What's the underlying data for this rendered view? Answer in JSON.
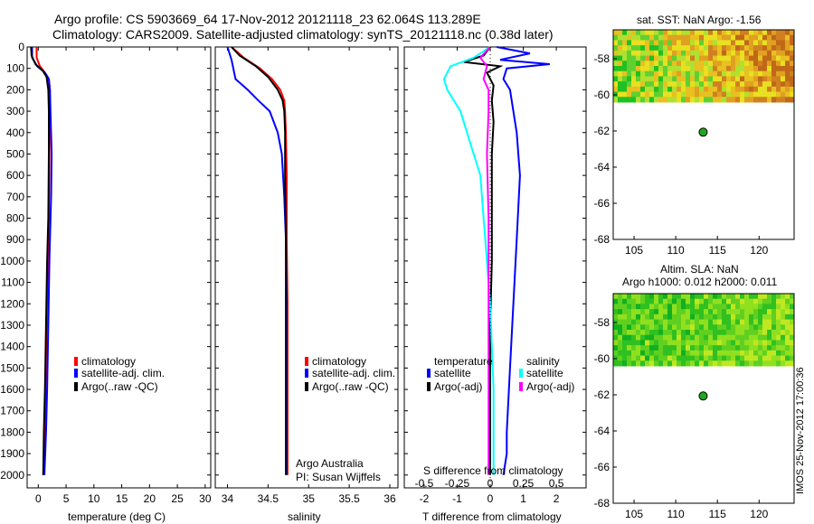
{
  "header": {
    "title_line1": "Argo profile: CS 5903669_64 17-Nov-2012 20121118_23 62.064S 113.289E",
    "title_line2": "Climatology: CARS2009. Satellite-adjusted climatology: synTS_20121118.nc (0.38d later)"
  },
  "colors": {
    "climatology": "#ff0000",
    "satellite": "#0000ff",
    "argo": "#000000",
    "satellite_s": "#00ffff",
    "argo_s": "#ff00ff"
  },
  "chart_data": [
    {
      "type": "line",
      "panel": "temperature",
      "xlabel": "temperature (deg C)",
      "xticks": [
        0,
        5,
        10,
        15,
        20,
        25,
        30
      ],
      "xlim": [
        -2,
        31
      ],
      "ylim": [
        0,
        2060
      ],
      "yticks": [
        0,
        100,
        200,
        300,
        400,
        500,
        600,
        700,
        800,
        900,
        1000,
        1100,
        1200,
        1300,
        1400,
        1500,
        1600,
        1700,
        1800,
        1900,
        2000
      ],
      "legend": [
        "climatology",
        "satellite-adj. clim.",
        "Argo(..raw -QC)"
      ],
      "series": [
        {
          "name": "climatology",
          "color": "#ff0000",
          "x": [
            -0.3,
            -0.3,
            0.3,
            1.2,
            1.9,
            2.1,
            2.1,
            2.0,
            1.9,
            1.7,
            1.5,
            1.3,
            1.1,
            0.9
          ],
          "y": [
            0,
            50,
            90,
            120,
            150,
            200,
            300,
            500,
            800,
            1000,
            1300,
            1600,
            1800,
            2000
          ]
        },
        {
          "name": "satellite-adj. clim.",
          "color": "#0000ff",
          "x": [
            -1.1,
            -1.1,
            -0.2,
            1.2,
            1.9,
            2.1,
            2.2,
            2.4,
            2.3,
            2.0,
            1.8,
            1.6,
            1.4,
            1.1
          ],
          "y": [
            0,
            50,
            90,
            120,
            150,
            200,
            300,
            500,
            700,
            1000,
            1300,
            1600,
            1800,
            2000
          ]
        },
        {
          "name": "Argo(..raw -QC)",
          "color": "#000000",
          "x": [
            -1.3,
            -1.2,
            -0.5,
            0.8,
            1.5,
            1.8,
            1.9,
            1.9,
            1.8,
            1.6,
            1.4,
            1.2,
            1.0,
            0.9
          ],
          "y": [
            0,
            40,
            80,
            110,
            140,
            200,
            300,
            500,
            800,
            1000,
            1300,
            1600,
            1800,
            2000
          ]
        }
      ]
    },
    {
      "type": "line",
      "panel": "salinity",
      "xlabel": "salinity",
      "xticks": [
        34,
        34.5,
        35,
        35.5,
        36
      ],
      "xtick_labels": [
        "34",
        "34.5",
        "35",
        "35.5",
        "36"
      ],
      "xlim": [
        33.85,
        36.1
      ],
      "ylim": [
        0,
        2060
      ],
      "legend": [
        "climatology",
        "satellite-adj. clim.",
        "Argo(..raw -QC)"
      ],
      "annotation": [
        "Argo Australia",
        "PI: Susan Wijffels"
      ],
      "series": [
        {
          "name": "climatology",
          "color": "#ff0000",
          "x": [
            34.05,
            34.2,
            34.4,
            34.55,
            34.65,
            34.7,
            34.71,
            34.72,
            34.73,
            34.73,
            34.74,
            34.74,
            34.74,
            34.74
          ],
          "y": [
            0,
            50,
            100,
            150,
            200,
            250,
            300,
            400,
            600,
            900,
            1200,
            1500,
            1800,
            2000
          ]
        },
        {
          "name": "satellite-adj. clim.",
          "color": "#0000ff",
          "x": [
            34.0,
            34.05,
            34.1,
            34.25,
            34.38,
            34.52,
            34.62,
            34.67,
            34.7,
            34.72,
            34.73,
            34.73,
            34.73,
            34.73
          ],
          "y": [
            0,
            60,
            150,
            200,
            250,
            300,
            400,
            500,
            700,
            900,
            1200,
            1500,
            1800,
            2000
          ]
        },
        {
          "name": "Argo(..raw -QC)",
          "color": "#000000",
          "x": [
            34.05,
            34.15,
            34.35,
            34.5,
            34.62,
            34.68,
            34.7,
            34.71,
            34.71,
            34.72,
            34.72,
            34.72,
            34.72,
            34.72
          ],
          "y": [
            0,
            40,
            90,
            140,
            200,
            250,
            300,
            400,
            600,
            900,
            1200,
            1500,
            1800,
            2000
          ]
        }
      ]
    },
    {
      "type": "line",
      "panel": "difference",
      "xlabel": "T difference from climatology",
      "xlabel_top": "S difference from climatology",
      "xticks": [
        -2,
        -1,
        0,
        1,
        2
      ],
      "xlim": [
        -2.6,
        2.9
      ],
      "s_ticks": [
        "-0.5",
        "-0.25",
        "0",
        "0.25",
        "0.5"
      ],
      "ylim": [
        0,
        2060
      ],
      "legend": {
        "temperature": [
          "satellite",
          "Argo(-adj)"
        ],
        "salinity": [
          "satellite",
          "Argo(-adj)"
        ]
      },
      "series": [
        {
          "name": "satellite",
          "group": "temperature",
          "color": "#0000ff",
          "x": [
            0.2,
            1.2,
            0.3,
            1.8,
            0.5,
            0.4,
            0.6,
            0.7,
            0.8,
            0.9,
            0.8,
            0.7,
            0.6,
            0.5,
            0.5,
            0.4
          ],
          "y": [
            0,
            30,
            60,
            80,
            100,
            150,
            200,
            300,
            400,
            600,
            900,
            1200,
            1500,
            1800,
            1900,
            2000
          ]
        },
        {
          "name": "Argo(-adj)",
          "group": "temperature",
          "color": "#000000",
          "x": [
            0,
            -0.2,
            -0.8,
            0.3,
            -0.1,
            0.1,
            0.05,
            0.1,
            0.05,
            0.05,
            0.05,
            0.0,
            0.0,
            0.0,
            0.0
          ],
          "y": [
            0,
            40,
            70,
            90,
            120,
            180,
            250,
            350,
            500,
            700,
            1000,
            1300,
            1600,
            1900,
            2000
          ]
        },
        {
          "name": "satellite",
          "group": "salinity",
          "color": "#00ffff",
          "x": [
            0,
            -0.5,
            -1.2,
            -1.4,
            -1.3,
            -1.1,
            -0.9,
            -0.7,
            -0.5,
            -0.3,
            -0.2,
            -0.1,
            0.0,
            0.05,
            0.1,
            0.1,
            0.1
          ],
          "y": [
            0,
            50,
            90,
            150,
            200,
            250,
            300,
            400,
            500,
            600,
            800,
            1000,
            1200,
            1400,
            1600,
            1800,
            2000
          ]
        },
        {
          "name": "Argo(-adj)",
          "group": "salinity",
          "color": "#ff00ff",
          "x": [
            0,
            -0.3,
            -0.1,
            -0.2,
            -0.05,
            -0.05,
            -0.1,
            -0.05,
            -0.05,
            -0.05,
            -0.05,
            -0.05
          ],
          "y": [
            0,
            50,
            90,
            150,
            200,
            300,
            500,
            800,
            1100,
            1400,
            1700,
            2000
          ]
        }
      ]
    }
  ],
  "maps": [
    {
      "title": "sat. SST: NaN Argo: -1.56",
      "yticks": [
        "-58",
        "-60",
        "-62",
        "-64",
        "-66",
        "-68"
      ],
      "xticks": [
        "105",
        "110",
        "115",
        "120"
      ],
      "float_label": "Argo"
    },
    {
      "title_line1": "Altim. SLA: NaN",
      "title_line2": "Argo h1000: 0.012 h2000: 0.011",
      "yticks": [
        "-58",
        "-60",
        "-62",
        "-64",
        "-66",
        "-68"
      ],
      "xticks": [
        "105",
        "110",
        "115",
        "120"
      ]
    }
  ],
  "footer_stamp": "IMOS 25-Nov-2012 17:00:36"
}
